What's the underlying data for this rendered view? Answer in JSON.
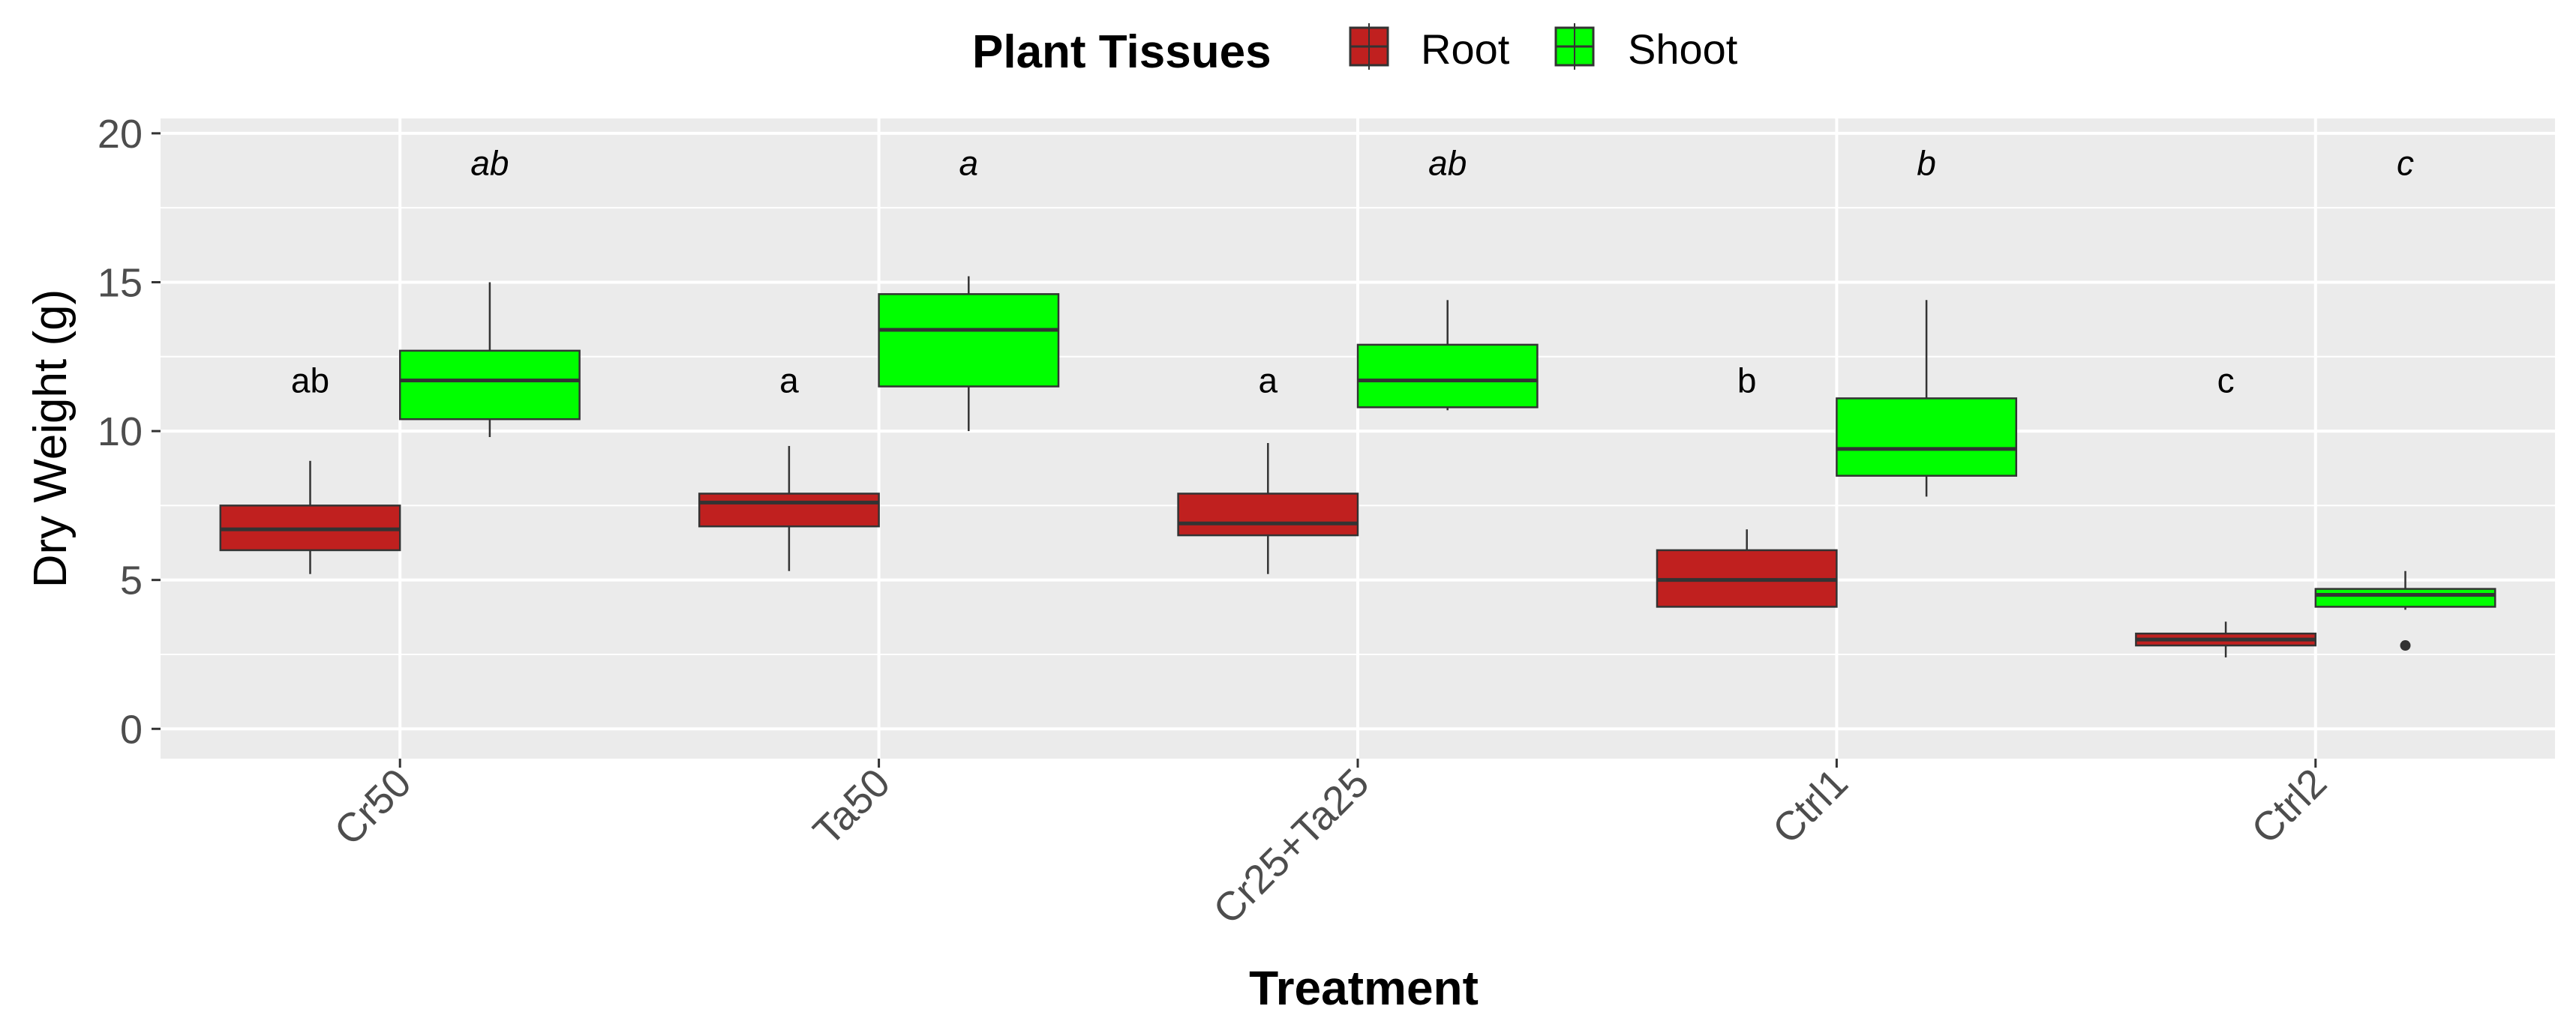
{
  "chart_data": {
    "type": "boxplot",
    "xlabel": "Treatment",
    "ylabel": "Dry Weight (g)",
    "ylim": [
      -1,
      20.5
    ],
    "yticks": [
      0,
      5,
      10,
      15,
      20
    ],
    "categories": [
      "Cr50",
      "Ta50",
      "Cr25+Ta25",
      "Ctrl1",
      "Ctrl2"
    ],
    "legend": {
      "title": "Plant Tissues",
      "position": "top-center",
      "entries": [
        {
          "name": "Root",
          "color": "#c0201f"
        },
        {
          "name": "Shoot",
          "color": "#00ff00"
        }
      ]
    },
    "series": [
      {
        "name": "Root",
        "color": "#c0201f",
        "boxes": [
          {
            "category": "Cr50",
            "whisker_low": 5.2,
            "q1": 6.0,
            "median": 6.7,
            "q3": 7.5,
            "whisker_high": 9.0,
            "outliers": []
          },
          {
            "category": "Ta50",
            "whisker_low": 5.3,
            "q1": 6.8,
            "median": 7.6,
            "q3": 7.9,
            "whisker_high": 9.5,
            "outliers": []
          },
          {
            "category": "Cr25+Ta25",
            "whisker_low": 5.2,
            "q1": 6.5,
            "median": 6.9,
            "q3": 7.9,
            "whisker_high": 9.6,
            "outliers": []
          },
          {
            "category": "Ctrl1",
            "whisker_low": 4.1,
            "q1": 4.1,
            "median": 5.0,
            "q3": 6.0,
            "whisker_high": 6.7,
            "outliers": []
          },
          {
            "category": "Ctrl2",
            "whisker_low": 2.4,
            "q1": 2.8,
            "median": 3.0,
            "q3": 3.2,
            "whisker_high": 3.6,
            "outliers": []
          }
        ],
        "significance_labels": [
          "ab",
          "a",
          "a",
          "b",
          "c"
        ]
      },
      {
        "name": "Shoot",
        "color": "#00ff00",
        "boxes": [
          {
            "category": "Cr50",
            "whisker_low": 9.8,
            "q1": 10.4,
            "median": 11.7,
            "q3": 12.7,
            "whisker_high": 15.0,
            "outliers": []
          },
          {
            "category": "Ta50",
            "whisker_low": 10.0,
            "q1": 11.5,
            "median": 13.4,
            "q3": 14.6,
            "whisker_high": 15.2,
            "outliers": []
          },
          {
            "category": "Cr25+Ta25",
            "whisker_low": 10.7,
            "q1": 10.8,
            "median": 11.7,
            "q3": 12.9,
            "whisker_high": 14.4,
            "outliers": []
          },
          {
            "category": "Ctrl1",
            "whisker_low": 7.8,
            "q1": 8.5,
            "median": 9.4,
            "q3": 11.1,
            "whisker_high": 14.4,
            "outliers": []
          },
          {
            "category": "Ctrl2",
            "whisker_low": 4.0,
            "q1": 4.1,
            "median": 4.5,
            "q3": 4.7,
            "whisker_high": 5.3,
            "outliers": [
              2.8
            ]
          }
        ],
        "significance_labels": [
          "ab",
          "a",
          "ab",
          "b",
          "c"
        ]
      }
    ],
    "grid": true,
    "panel_background": "#ebebeb",
    "grid_color": "#ffffff"
  }
}
